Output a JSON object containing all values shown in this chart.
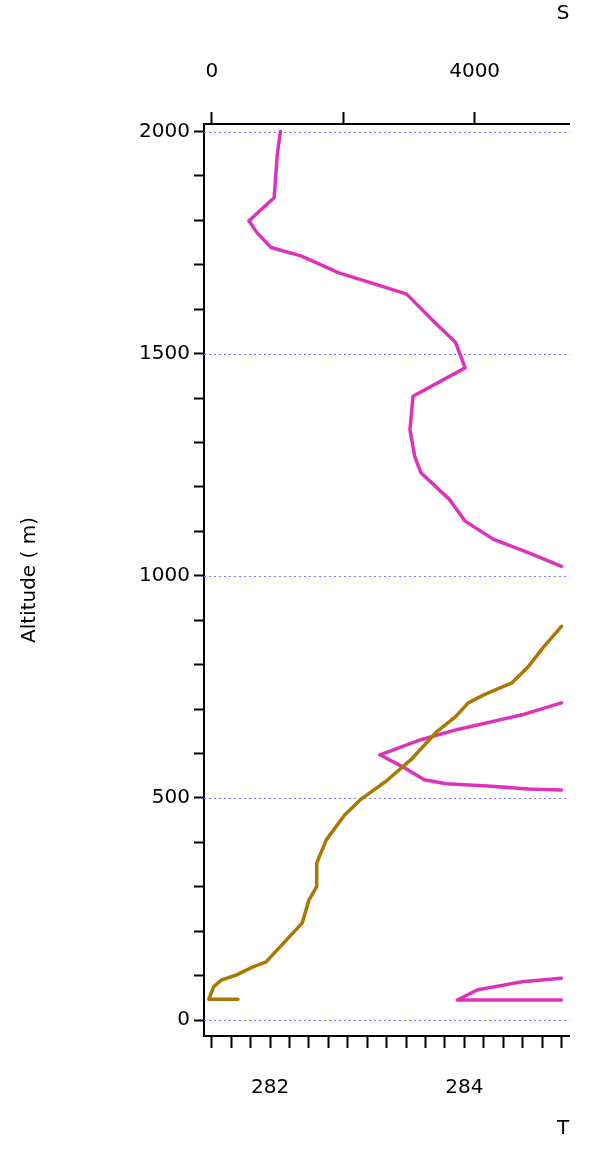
{
  "chart_data": {
    "type": "line",
    "xlabel": "T",
    "x2label": "S",
    "ylabel": "Altitude ( m)",
    "xlim": [
      281.32,
      285.08
    ],
    "xticks": [
      {
        "value": 281.4,
        "label": null
      },
      {
        "value": 281.6,
        "label": null
      },
      {
        "value": 281.8,
        "label": null
      },
      282,
      {
        "value": 282.2,
        "label": null
      },
      {
        "value": 282.4,
        "label": null
      },
      {
        "value": 282.6,
        "label": null
      },
      {
        "value": 282.8,
        "label": null
      },
      {
        "value": 283,
        "label": null
      },
      {
        "value": 283.2,
        "label": null
      },
      {
        "value": 283.4,
        "label": null
      },
      {
        "value": 283.6,
        "label": null
      },
      {
        "value": 283.8,
        "label": null
      },
      284,
      {
        "value": 284.2,
        "label": null
      },
      {
        "value": 284.4,
        "label": null
      },
      {
        "value": 284.6,
        "label": null
      },
      {
        "value": 284.8,
        "label": null
      },
      {
        "value": 285,
        "label": null
      }
    ],
    "x2lim": [
      -121,
      5442
    ],
    "x2ticks": [
      0,
      {
        "value": 2000,
        "label": null
      },
      4000
    ],
    "ylim": [
      -36,
      2017
    ],
    "yticks": [
      0,
      {
        "value": 100,
        "label": null
      },
      {
        "value": 200,
        "label": null
      },
      {
        "value": 300,
        "label": null
      },
      {
        "value": 400,
        "label": null
      },
      500,
      {
        "value": 600,
        "label": null
      },
      {
        "value": 700,
        "label": null
      },
      {
        "value": 800,
        "label": null
      },
      {
        "value": 900,
        "label": null
      },
      1000,
      {
        "value": 1100,
        "label": null
      },
      {
        "value": 1200,
        "label": null
      },
      {
        "value": 1300,
        "label": null
      },
      {
        "value": 1400,
        "label": null
      },
      1500,
      {
        "value": 1600,
        "label": null
      },
      {
        "value": 1700,
        "label": null
      },
      {
        "value": 1800,
        "label": null
      },
      {
        "value": 1900,
        "label": null
      },
      2000
    ],
    "grid": "y",
    "series": [
      {
        "color": "#aa7700",
        "x": [
          281.67,
          281.37,
          281.42,
          281.5,
          281.65,
          281.83,
          281.96,
          282.15,
          282.33,
          282.4,
          282.48,
          282.48,
          282.58,
          282.77,
          282.93,
          283.19,
          283.45,
          283.72,
          283.91,
          284.04,
          284.2,
          284.49,
          284.66,
          284.82,
          285.0
        ],
        "values": [
          47,
          47,
          75,
          90,
          101,
          120,
          131,
          176,
          218,
          270,
          300,
          353,
          406,
          462,
          496,
          537,
          586,
          650,
          683,
          714,
          732,
          759,
          796,
          841,
          886
        ]
      },
      {
        "color": "#dd33bb",
        "axis": "x2",
        "x": [
          1043,
          995,
          947,
          563,
          682,
          899,
          1356,
          1933,
          2413,
          2966,
          3375,
          3711,
          3855,
          3062,
          3015,
          3087,
          3182,
          3615,
          3855,
          4288,
          4817,
          5322,
          null,
          5322,
          4721,
          3711,
          3182,
          2557,
          2893,
          3231,
          3567,
          4192,
          4817,
          5322,
          null,
          5322,
          4721,
          4047,
          3736,
          5322
        ],
        "values": [
          2000,
          1949,
          1851,
          1799,
          1773,
          1739,
          1720,
          1682,
          1660,
          1634,
          1573,
          1525,
          1468,
          1404,
          1329,
          1269,
          1232,
          1172,
          1123,
          1082,
          1052,
          1021,
          null,
          714,
          687,
          653,
          631,
          597,
          571,
          541,
          532,
          527,
          520,
          518,
          null,
          94,
          86,
          68,
          45,
          45
        ]
      }
    ]
  }
}
